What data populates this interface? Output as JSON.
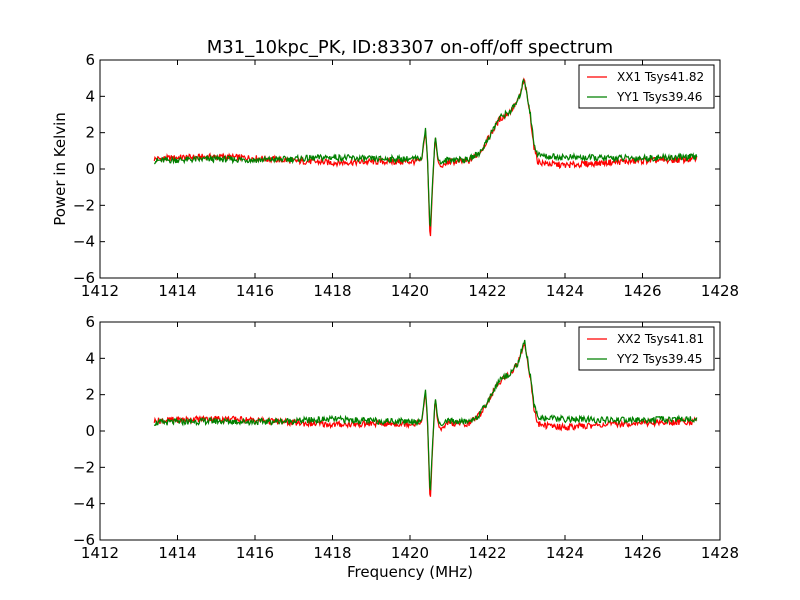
{
  "chart_data": [
    {
      "type": "line",
      "title": "M31_10kpc_PK, ID:83307 on-off/off spectrum",
      "xlabel": "",
      "ylabel": "Power in Kelvin",
      "xlim": [
        1412,
        1428
      ],
      "ylim": [
        -6,
        6
      ],
      "xticks": [
        "1412",
        "1414",
        "1416",
        "1418",
        "1420",
        "1422",
        "1424",
        "1426",
        "1428"
      ],
      "yticks": [
        "6",
        "4",
        "2",
        "0",
        "−2",
        "−4",
        "−6"
      ],
      "legend_position": "top-right",
      "series": [
        {
          "name": "XX1 Tsys41.82",
          "color": "#ff0000",
          "points": [
            [
              1413.4,
              0.55
            ],
            [
              1414.0,
              0.62
            ],
            [
              1415.0,
              0.68
            ],
            [
              1416.0,
              0.6
            ],
            [
              1417.0,
              0.45
            ],
            [
              1418.0,
              0.35
            ],
            [
              1419.0,
              0.4
            ],
            [
              1420.0,
              0.4
            ],
            [
              1420.3,
              0.45
            ],
            [
              1420.4,
              2.1
            ],
            [
              1420.45,
              0.6
            ],
            [
              1420.52,
              -4.1
            ],
            [
              1420.58,
              -1.0
            ],
            [
              1420.65,
              1.8
            ],
            [
              1420.72,
              0.4
            ],
            [
              1420.8,
              0.1
            ],
            [
              1421.0,
              0.4
            ],
            [
              1421.5,
              0.4
            ],
            [
              1421.8,
              0.9
            ],
            [
              1422.0,
              1.6
            ],
            [
              1422.3,
              2.7
            ],
            [
              1422.6,
              3.2
            ],
            [
              1422.8,
              3.8
            ],
            [
              1422.95,
              4.9
            ],
            [
              1423.1,
              3.0
            ],
            [
              1423.2,
              1.2
            ],
            [
              1423.3,
              0.4
            ],
            [
              1423.5,
              0.3
            ],
            [
              1424.0,
              0.2
            ],
            [
              1425.0,
              0.35
            ],
            [
              1426.0,
              0.45
            ],
            [
              1427.0,
              0.5
            ],
            [
              1427.4,
              0.55
            ]
          ]
        },
        {
          "name": "YY1 Tsys39.46",
          "color": "#008000",
          "points": [
            [
              1413.4,
              0.45
            ],
            [
              1414.0,
              0.5
            ],
            [
              1415.0,
              0.55
            ],
            [
              1416.0,
              0.5
            ],
            [
              1417.0,
              0.55
            ],
            [
              1418.0,
              0.65
            ],
            [
              1419.0,
              0.55
            ],
            [
              1420.0,
              0.55
            ],
            [
              1420.3,
              0.55
            ],
            [
              1420.4,
              2.3
            ],
            [
              1420.45,
              0.7
            ],
            [
              1420.52,
              -3.6
            ],
            [
              1420.58,
              -0.8
            ],
            [
              1420.65,
              1.9
            ],
            [
              1420.72,
              0.6
            ],
            [
              1420.8,
              0.3
            ],
            [
              1421.0,
              0.55
            ],
            [
              1421.5,
              0.5
            ],
            [
              1421.8,
              0.9
            ],
            [
              1422.0,
              1.6
            ],
            [
              1422.3,
              2.8
            ],
            [
              1422.6,
              3.2
            ],
            [
              1422.8,
              3.8
            ],
            [
              1422.95,
              5.0
            ],
            [
              1423.1,
              3.1
            ],
            [
              1423.2,
              1.4
            ],
            [
              1423.3,
              0.8
            ],
            [
              1423.5,
              0.7
            ],
            [
              1424.0,
              0.65
            ],
            [
              1425.0,
              0.6
            ],
            [
              1426.0,
              0.6
            ],
            [
              1427.0,
              0.65
            ],
            [
              1427.4,
              0.65
            ]
          ]
        }
      ]
    },
    {
      "type": "line",
      "title": "",
      "xlabel": "Frequency (MHz)",
      "ylabel": "",
      "xlim": [
        1412,
        1428
      ],
      "ylim": [
        -6,
        6
      ],
      "xticks": [
        "1412",
        "1414",
        "1416",
        "1418",
        "1420",
        "1422",
        "1424",
        "1426",
        "1428"
      ],
      "yticks": [
        "6",
        "4",
        "2",
        "0",
        "−2",
        "−4",
        "−6"
      ],
      "legend_position": "top-right",
      "series": [
        {
          "name": "XX2 Tsys41.81",
          "color": "#ff0000",
          "points": [
            [
              1413.4,
              0.55
            ],
            [
              1414.0,
              0.62
            ],
            [
              1415.0,
              0.68
            ],
            [
              1416.0,
              0.6
            ],
            [
              1417.0,
              0.45
            ],
            [
              1418.0,
              0.35
            ],
            [
              1419.0,
              0.4
            ],
            [
              1420.0,
              0.4
            ],
            [
              1420.3,
              0.45
            ],
            [
              1420.4,
              2.1
            ],
            [
              1420.45,
              0.6
            ],
            [
              1420.52,
              -4.1
            ],
            [
              1420.58,
              -1.0
            ],
            [
              1420.65,
              1.8
            ],
            [
              1420.72,
              0.4
            ],
            [
              1420.8,
              0.1
            ],
            [
              1421.0,
              0.4
            ],
            [
              1421.5,
              0.4
            ],
            [
              1421.8,
              0.9
            ],
            [
              1422.0,
              1.6
            ],
            [
              1422.3,
              2.7
            ],
            [
              1422.6,
              3.2
            ],
            [
              1422.8,
              3.8
            ],
            [
              1422.95,
              4.9
            ],
            [
              1423.1,
              3.0
            ],
            [
              1423.2,
              1.2
            ],
            [
              1423.3,
              0.4
            ],
            [
              1423.5,
              0.3
            ],
            [
              1424.0,
              0.2
            ],
            [
              1425.0,
              0.35
            ],
            [
              1426.0,
              0.45
            ],
            [
              1427.0,
              0.5
            ],
            [
              1427.4,
              0.55
            ]
          ]
        },
        {
          "name": "YY2 Tsys39.45",
          "color": "#008000",
          "points": [
            [
              1413.4,
              0.45
            ],
            [
              1414.0,
              0.5
            ],
            [
              1415.0,
              0.55
            ],
            [
              1416.0,
              0.5
            ],
            [
              1417.0,
              0.55
            ],
            [
              1418.0,
              0.65
            ],
            [
              1419.0,
              0.55
            ],
            [
              1420.0,
              0.55
            ],
            [
              1420.3,
              0.55
            ],
            [
              1420.4,
              2.3
            ],
            [
              1420.45,
              0.7
            ],
            [
              1420.52,
              -3.6
            ],
            [
              1420.58,
              -0.8
            ],
            [
              1420.65,
              1.9
            ],
            [
              1420.72,
              0.6
            ],
            [
              1420.8,
              0.3
            ],
            [
              1421.0,
              0.55
            ],
            [
              1421.5,
              0.5
            ],
            [
              1421.8,
              0.9
            ],
            [
              1422.0,
              1.6
            ],
            [
              1422.3,
              2.8
            ],
            [
              1422.6,
              3.2
            ],
            [
              1422.8,
              3.8
            ],
            [
              1422.95,
              5.0
            ],
            [
              1423.1,
              3.1
            ],
            [
              1423.2,
              1.4
            ],
            [
              1423.3,
              0.8
            ],
            [
              1423.5,
              0.7
            ],
            [
              1424.0,
              0.65
            ],
            [
              1425.0,
              0.6
            ],
            [
              1426.0,
              0.6
            ],
            [
              1427.0,
              0.65
            ],
            [
              1427.4,
              0.65
            ]
          ]
        }
      ]
    }
  ]
}
